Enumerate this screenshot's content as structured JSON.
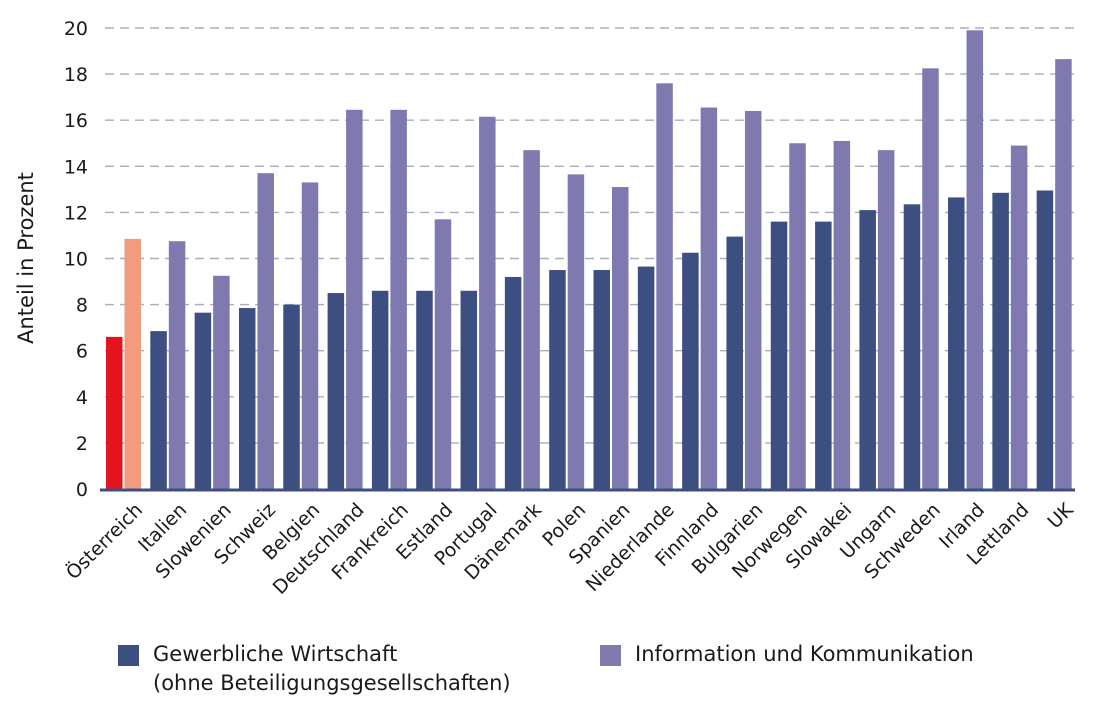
{
  "chart_data": {
    "type": "bar",
    "ylabel": "Anteil in Prozent",
    "ylim": [
      0,
      20
    ],
    "yticks": [
      "0",
      "2",
      "4",
      "6",
      "8",
      "10",
      "12",
      "14",
      "16",
      "18",
      "20"
    ],
    "grid": true,
    "categories": [
      "Österreich",
      "Italien",
      "Slowenien",
      "Schweiz",
      "Belgien",
      "Deutschland",
      "Frankreich",
      "Estland",
      "Portugal",
      "Dänemark",
      "Polen",
      "Spanien",
      "Niederlande",
      "Finnland",
      "Bulgarien",
      "Norwegen",
      "Slowakei",
      "Ungarn",
      "Schweden",
      "Irland",
      "Lettland",
      "UK"
    ],
    "series": [
      {
        "name": "Gewerbliche Wirtschaft (ohne Beteiligungsgesellschaften)",
        "color": "#3d4f80",
        "highlight_color": "#e3141f",
        "values": [
          6.6,
          6.85,
          7.65,
          7.85,
          8.0,
          8.5,
          8.6,
          8.6,
          8.6,
          9.2,
          9.5,
          9.5,
          9.65,
          10.25,
          10.95,
          11.6,
          11.6,
          12.1,
          12.35,
          12.65,
          12.85,
          12.95
        ]
      },
      {
        "name": "Information und Kommunikation",
        "color": "#7e7ab0",
        "highlight_color": "#f19b7f",
        "values": [
          10.85,
          10.75,
          9.25,
          13.7,
          13.3,
          16.45,
          16.45,
          11.7,
          16.15,
          14.7,
          13.65,
          13.1,
          17.6,
          16.55,
          16.4,
          15.0,
          15.1,
          14.7,
          18.25,
          19.9,
          14.9,
          18.65
        ]
      }
    ],
    "legend": {
      "position": "bottom",
      "items": [
        {
          "line1": "Gewerbliche Wirtschaft",
          "line2": "(ohne Beteiligungsgesellschaften)",
          "color": "#3d4f80"
        },
        {
          "line1": "Information und Kommunikation",
          "line2": "",
          "color": "#7e7ab0"
        }
      ]
    }
  }
}
